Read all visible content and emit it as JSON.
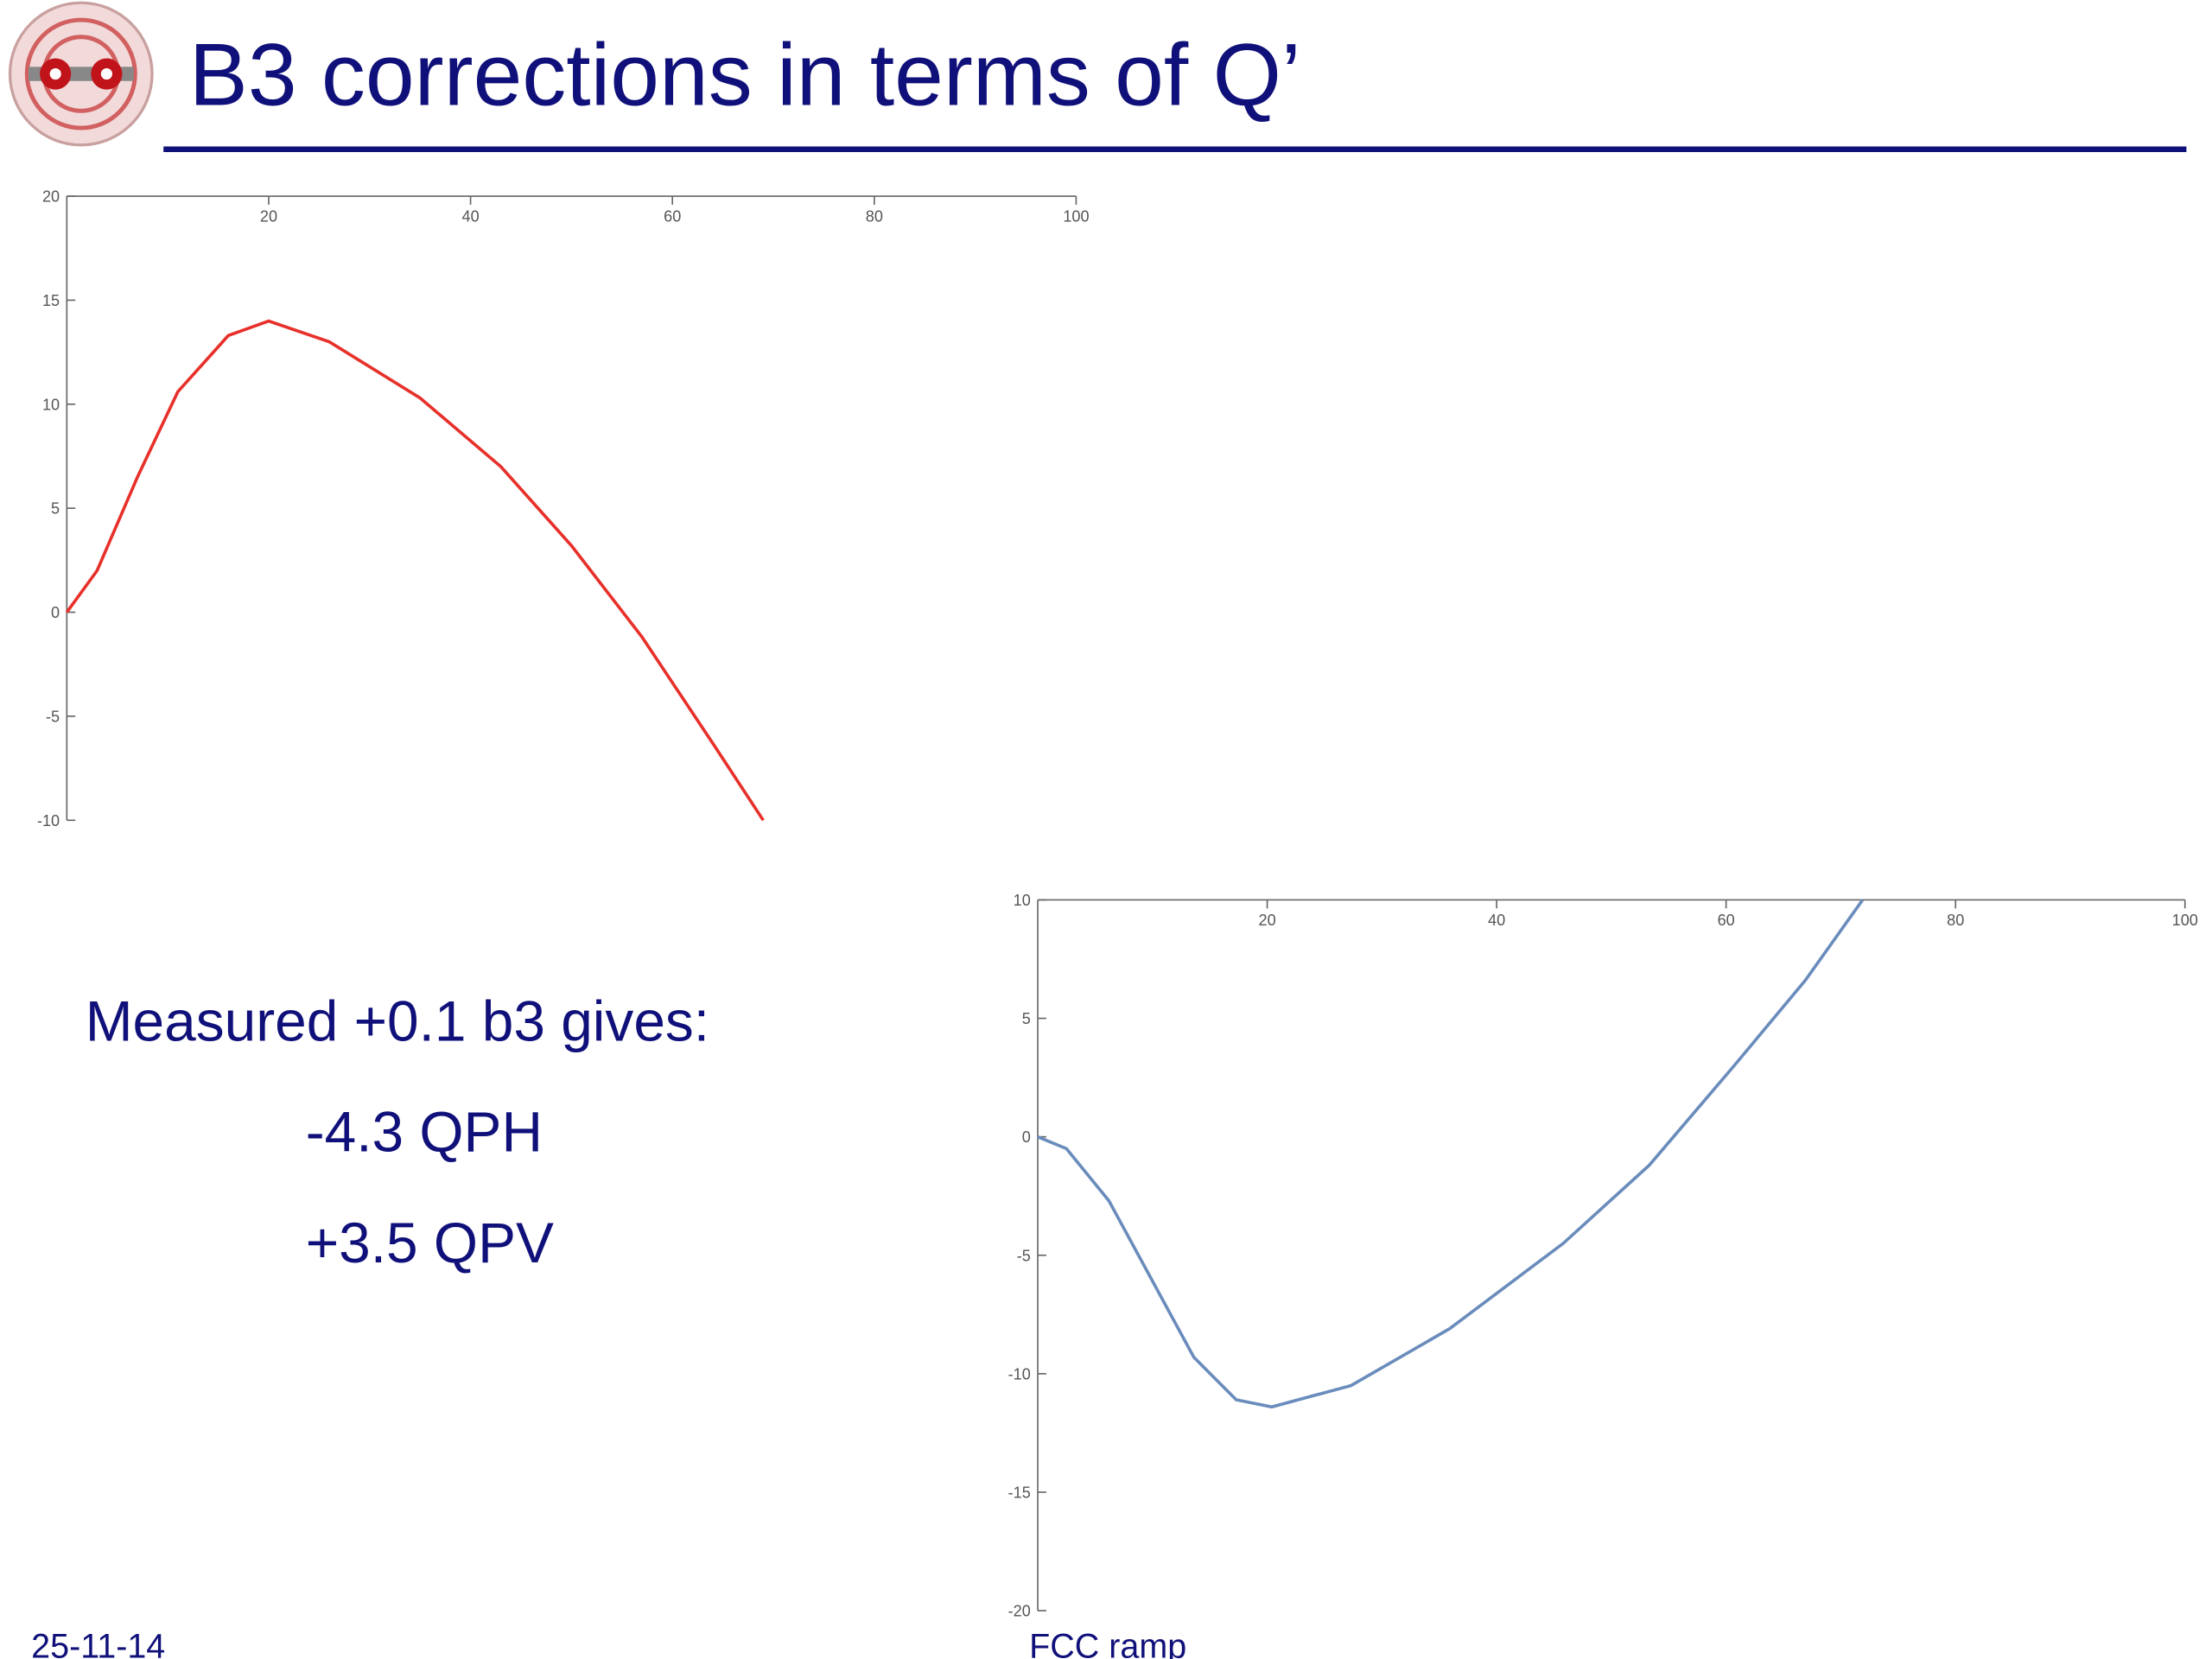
{
  "title": "B3 corrections in terms of Q’",
  "text": [
    "Measured +0.1 b3 gives:",
    "-4.3 QPH",
    "+3.5 QPV"
  ],
  "footer": {
    "date": "25-11-14",
    "label": "FCC ramp"
  },
  "chart_data": [
    {
      "type": "line",
      "color": "#e8302a",
      "x": [
        0,
        3,
        7,
        11,
        16,
        20,
        26,
        35,
        43,
        50,
        57,
        64,
        69
      ],
      "values": [
        0,
        2,
        6.5,
        10.6,
        13.3,
        14,
        13,
        10.3,
        7,
        3.2,
        -1.2,
        -6.3,
        -10
      ],
      "xlim": [
        0,
        100
      ],
      "xticks": [
        20,
        40,
        60,
        80,
        100
      ],
      "ylim": [
        -10,
        20
      ],
      "yticks": [
        -10,
        -5,
        0,
        5,
        10,
        15,
        20
      ]
    },
    {
      "type": "line",
      "color": "#6a8cbc",
      "x": [
        0,
        2.5,
        6.2,
        9.9,
        13.6,
        17.3,
        20.4,
        27.3,
        35.9,
        45.8,
        53.3,
        60.7,
        66.9,
        71.9
      ],
      "values": [
        0,
        -0.5,
        -2.7,
        -6,
        -9.3,
        -11.1,
        -11.4,
        -10.5,
        -8.1,
        -4.5,
        -1.2,
        3,
        6.6,
        10
      ],
      "xlim": [
        0,
        100
      ],
      "xticks": [
        20,
        40,
        60,
        80,
        100
      ],
      "ylim": [
        -20,
        10
      ],
      "yticks": [
        -20,
        -15,
        -10,
        -5,
        0,
        5,
        10
      ]
    }
  ]
}
